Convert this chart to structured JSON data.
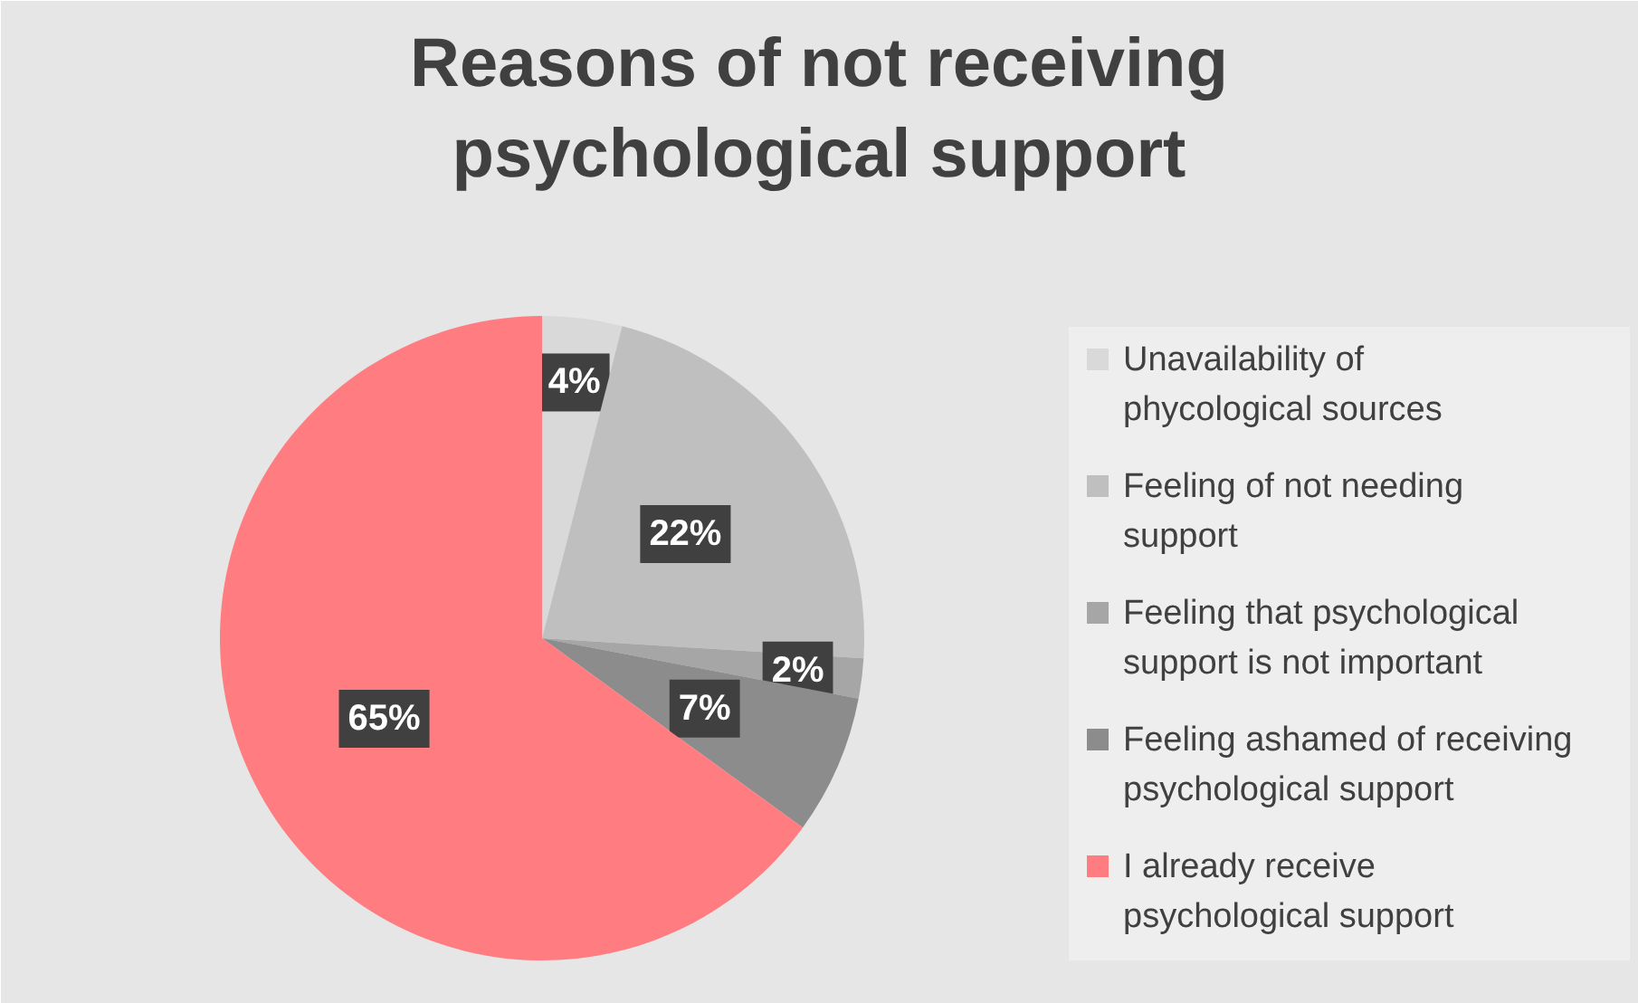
{
  "chart_data": {
    "type": "pie",
    "title": "Reasons of not receiving psychological support",
    "categories": [
      "Unavailability of phycological sources",
      "Feeling of not needing support",
      "Feeling that psychological support is not important",
      "Feeling ashamed of receiving psychological support",
      "I already receive psychological support"
    ],
    "values": [
      4,
      22,
      2,
      7,
      65
    ],
    "value_labels": [
      "4%",
      "22%",
      "2%",
      "7%",
      "65%"
    ],
    "colors": [
      "#d9d9d9",
      "#bfbfbf",
      "#a6a6a6",
      "#8c8c8c",
      "#ff7c80"
    ],
    "legend": "right"
  }
}
